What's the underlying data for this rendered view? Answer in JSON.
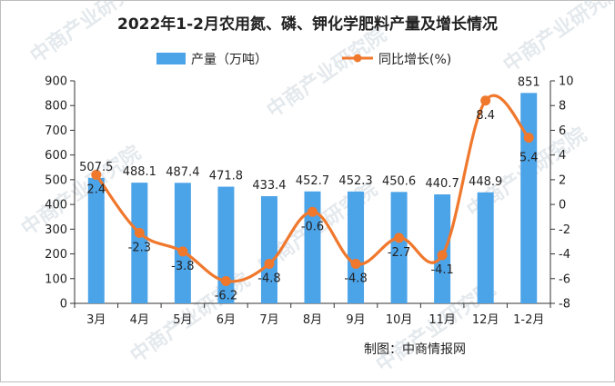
{
  "chart_data": {
    "type": "bar+line",
    "title": "2022年1-2月农用氮、磷、钾化学肥料产量及增长情况",
    "categories": [
      "3月",
      "4月",
      "5月",
      "6月",
      "7月",
      "8月",
      "9月",
      "10月",
      "11月",
      "12月",
      "1-2月"
    ],
    "series": [
      {
        "name": "产量（万吨）",
        "type": "bar",
        "axis": "left",
        "color": "#4ba3e8",
        "values": [
          507.5,
          488.1,
          487.4,
          471.8,
          433.4,
          452.7,
          452.3,
          450.6,
          440.7,
          448.9,
          851
        ],
        "labels": [
          "507.5",
          "488.1",
          "487.4",
          "471.8",
          "433.4",
          "452.7",
          "452.3",
          "450.6",
          "440.7",
          "448.9",
          "851"
        ]
      },
      {
        "name": "同比增长(%)",
        "type": "line",
        "axis": "right",
        "color": "#f0782d",
        "values": [
          2.4,
          -2.3,
          -3.8,
          -6.2,
          -4.8,
          -0.6,
          -4.8,
          -2.7,
          -4.1,
          8.4,
          5.4
        ],
        "labels": [
          "2.4",
          "-2.3",
          "-3.8",
          "-6.2",
          "-4.8",
          "-0.6",
          "-4.8",
          "-2.7",
          "-4.1",
          "8.4",
          "5.4"
        ]
      }
    ],
    "y_left": {
      "min": 0,
      "max": 900,
      "step": 100,
      "ticks": [
        "0",
        "100",
        "200",
        "300",
        "400",
        "500",
        "600",
        "700",
        "800",
        "900"
      ]
    },
    "y_right": {
      "min": -8,
      "max": 10,
      "step": 2,
      "ticks": [
        "-8",
        "-6",
        "-4",
        "-2",
        "0",
        "2",
        "4",
        "6",
        "8",
        "10"
      ]
    },
    "legend_position": "top-center",
    "grid": false,
    "source": "制图：中商情报网",
    "watermark": "中商产业研究院"
  }
}
